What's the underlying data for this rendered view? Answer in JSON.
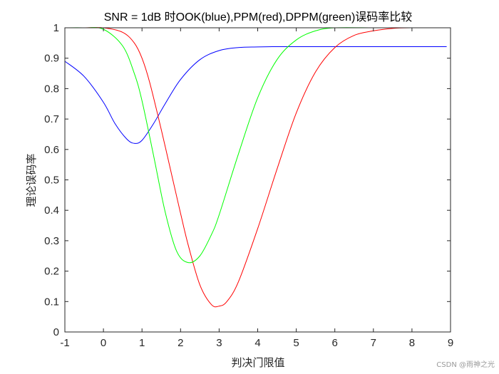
{
  "chart_data": {
    "type": "line",
    "title": "SNR = 1dB 时OOK(blue),PPM(red),DPPM(green)误码率比较",
    "xlabel": "判决门限值",
    "ylabel": "理论误码率",
    "xlim": [
      -1,
      9
    ],
    "ylim": [
      0,
      1
    ],
    "xticks": [
      -1,
      0,
      1,
      2,
      3,
      4,
      5,
      6,
      7,
      8,
      9
    ],
    "yticks": [
      0,
      0.1,
      0.2,
      0.3,
      0.4,
      0.5,
      0.6,
      0.7,
      0.8,
      0.9,
      1
    ],
    "grid": false,
    "series": [
      {
        "color": "#0000ff",
        "x": [
          -1,
          -0.5,
          0,
          0.3,
          0.6,
          0.8,
          1.0,
          1.3,
          1.6,
          2.0,
          2.5,
          3.0,
          3.5,
          4.0,
          4.5,
          5.0,
          6.0,
          7.0,
          8.0,
          8.9
        ],
        "y": [
          0.89,
          0.84,
          0.755,
          0.685,
          0.635,
          0.62,
          0.63,
          0.685,
          0.75,
          0.83,
          0.895,
          0.925,
          0.935,
          0.937,
          0.938,
          0.938,
          0.938,
          0.938,
          0.938,
          0.938
        ]
      },
      {
        "color": "#ff0000",
        "x": [
          -1,
          -0.5,
          0,
          0.5,
          0.8,
          1.0,
          1.2,
          1.5,
          1.8,
          2.0,
          2.2,
          2.5,
          2.8,
          3.0,
          3.2,
          3.5,
          4.0,
          4.5,
          5.0,
          5.5,
          6.0,
          6.5,
          7.0,
          7.5,
          8.0,
          8.9
        ],
        "y": [
          1.0,
          1.0,
          1.0,
          0.985,
          0.95,
          0.9,
          0.82,
          0.665,
          0.5,
          0.39,
          0.285,
          0.155,
          0.09,
          0.085,
          0.1,
          0.165,
          0.34,
          0.535,
          0.72,
          0.855,
          0.935,
          0.975,
          0.99,
          0.998,
          1.0,
          1.0
        ]
      },
      {
        "color": "#00ff00",
        "x": [
          -1,
          -0.5,
          0,
          0.5,
          0.8,
          1.0,
          1.3,
          1.6,
          1.9,
          2.2,
          2.5,
          2.8,
          3.0,
          3.5,
          4.0,
          4.5,
          5.0,
          5.5,
          6.0,
          7.0,
          8.0,
          8.9
        ],
        "y": [
          1.0,
          1.0,
          0.995,
          0.94,
          0.85,
          0.76,
          0.58,
          0.395,
          0.265,
          0.228,
          0.25,
          0.32,
          0.385,
          0.585,
          0.77,
          0.895,
          0.96,
          0.99,
          1.0,
          1.0,
          1.0,
          1.0
        ]
      }
    ]
  },
  "watermark": "CSDN @雨神之光"
}
